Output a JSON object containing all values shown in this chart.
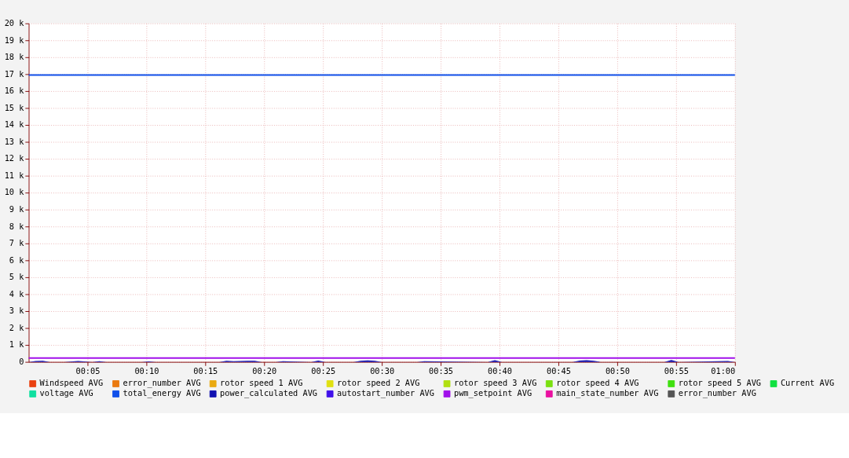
{
  "chart_data": {
    "type": "line",
    "xlim": [
      0,
      1
    ],
    "xticks": [
      {
        "value": 0.08333,
        "label": "00:05"
      },
      {
        "value": 0.16667,
        "label": "00:10"
      },
      {
        "value": 0.25,
        "label": "00:15"
      },
      {
        "value": 0.33333,
        "label": "00:20"
      },
      {
        "value": 0.41667,
        "label": "00:25"
      },
      {
        "value": 0.5,
        "label": "00:30"
      },
      {
        "value": 0.58333,
        "label": "00:35"
      },
      {
        "value": 0.66667,
        "label": "00:40"
      },
      {
        "value": 0.75,
        "label": "00:45"
      },
      {
        "value": 0.83333,
        "label": "00:50"
      },
      {
        "value": 0.91667,
        "label": "00:55"
      },
      {
        "value": 1,
        "label": "01:00"
      }
    ],
    "ylim": [
      0,
      20000
    ],
    "yticks": [
      0,
      {
        "value": 1000,
        "label": "1 k"
      },
      {
        "value": 2000,
        "label": "2 k"
      },
      {
        "value": 3000,
        "label": "3 k"
      },
      {
        "value": 4000,
        "label": "4 k"
      },
      {
        "value": 5000,
        "label": "5 k"
      },
      {
        "value": 6000,
        "label": "6 k"
      },
      {
        "value": 7000,
        "label": "7 k"
      },
      {
        "value": 8000,
        "label": "8 k"
      },
      {
        "value": 9000,
        "label": "9 k"
      },
      {
        "value": 10000,
        "label": "10 k"
      },
      {
        "value": 11000,
        "label": "11 k"
      },
      {
        "value": 12000,
        "label": "12 k"
      },
      {
        "value": 13000,
        "label": "13 k"
      },
      {
        "value": 14000,
        "label": "14 k"
      },
      {
        "value": 15000,
        "label": "15 k"
      },
      {
        "value": 16000,
        "label": "16 k"
      },
      {
        "value": 17000,
        "label": "17 k"
      },
      {
        "value": 18000,
        "label": "18 k"
      },
      {
        "value": 19000,
        "label": "19 k"
      },
      {
        "value": 20000,
        "label": "20 k"
      }
    ],
    "grid": true,
    "legend": "bottom",
    "x": [
      0,
      1
    ],
    "series": [
      {
        "name": "Windspeed AVG",
        "color": "#ea4010",
        "values": [
          null,
          null
        ]
      },
      {
        "name": "error_number AVG",
        "color": "#ea7a10",
        "values": [
          null,
          null
        ]
      },
      {
        "name": "rotor speed 1 AVG",
        "color": "#eaaa10",
        "values": [
          null,
          null
        ]
      },
      {
        "name": "rotor speed 2 AVG",
        "color": "#e0e010",
        "values": [
          null,
          null
        ]
      },
      {
        "name": "rotor speed 3 AVG",
        "color": "#b0e010",
        "values": [
          null,
          null
        ]
      },
      {
        "name": "rotor speed 4 AVG",
        "color": "#7ae010",
        "values": [
          null,
          null
        ]
      },
      {
        "name": "rotor speed 5 AVG",
        "color": "#40e010",
        "values": [
          null,
          null
        ]
      },
      {
        "name": "Current AVG",
        "color": "#10e040",
        "values": [
          null,
          null
        ]
      },
      {
        "name": "voltage AVG",
        "color": "#10e0a0",
        "values": [
          null,
          null
        ]
      },
      {
        "name": "total_energy AVG",
        "color": "#1050ea",
        "values": [
          16950,
          16950
        ]
      },
      {
        "name": "power_calculated AVG",
        "color": "#1010b0",
        "type": "area",
        "x": [
          0,
          0.01,
          0.02,
          0.03,
          0.05,
          0.07,
          0.09,
          0.1,
          0.11,
          0.16,
          0.17,
          0.18,
          0.27,
          0.28,
          0.29,
          0.31,
          0.32,
          0.33,
          0.35,
          0.36,
          0.4,
          0.41,
          0.42,
          0.46,
          0.47,
          0.48,
          0.49,
          0.5,
          0.55,
          0.56,
          0.65,
          0.66,
          0.67,
          0.77,
          0.78,
          0.79,
          0.8,
          0.81,
          0.9,
          0.91,
          0.92,
          0.99,
          1.0
        ],
        "values": [
          0,
          50,
          60,
          0,
          0,
          50,
          0,
          40,
          0,
          0,
          30,
          0,
          0,
          60,
          40,
          60,
          70,
          0,
          0,
          40,
          0,
          80,
          0,
          0,
          70,
          90,
          60,
          0,
          0,
          40,
          0,
          100,
          0,
          0,
          80,
          100,
          70,
          0,
          0,
          110,
          0,
          50,
          0
        ]
      },
      {
        "name": "autostart_number AVG",
        "color": "#4010ea",
        "values": [
          null,
          null
        ]
      },
      {
        "name": "pwm_setpoint AVG",
        "color": "#a010ea",
        "values": [
          230,
          230
        ]
      },
      {
        "name": "main_state_number AVG",
        "color": "#ea10a0",
        "values": [
          null,
          null
        ]
      },
      {
        "name": "error_number AVG",
        "color": "#555555",
        "values": [
          null,
          null
        ]
      }
    ]
  }
}
